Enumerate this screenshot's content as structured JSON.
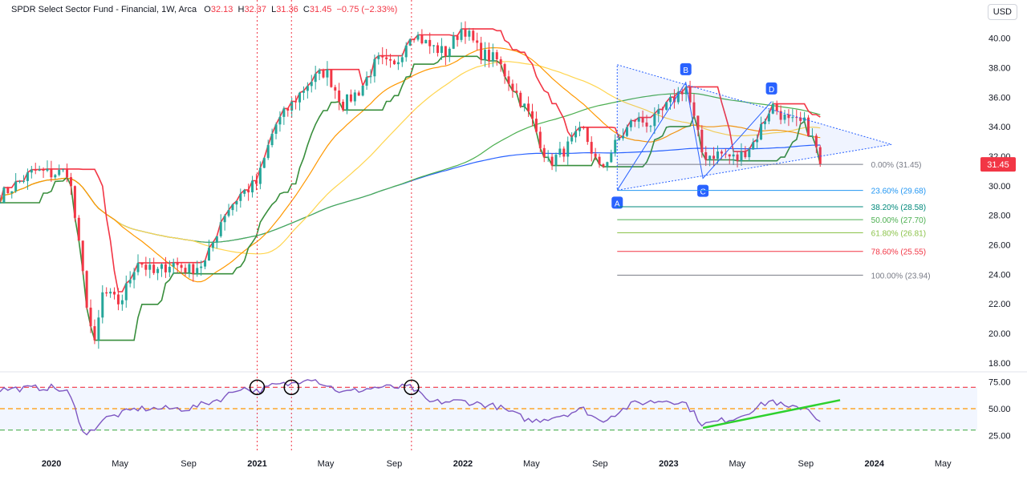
{
  "header": {
    "symbol": "SPDR Select Sector Fund - Financial, 1W, Arca",
    "o_label": "O",
    "o": "32.13",
    "h_label": "H",
    "h": "32.37",
    "l_label": "L",
    "l": "31.36",
    "c_label": "C",
    "c": "31.45",
    "change": "−0.75 (−2.33%)"
  },
  "currency_button": "USD",
  "last_price_label": "31.45",
  "colors": {
    "up": "#26a69a",
    "down": "#f23645",
    "rsi": "#7e57c2",
    "sma200": "#2962ff",
    "fib_blue": "#2196f3",
    "triangle": "#2962ff"
  },
  "chart_data": {
    "type": "candlestick",
    "title": "SPDR Select Sector Fund - Financial, 1W, Arca",
    "x_axis": {
      "tick_labels": [
        "2020",
        "May",
        "Sep",
        "2021",
        "May",
        "Sep",
        "2022",
        "May",
        "Sep",
        "2023",
        "May",
        "Sep",
        "2024",
        "May"
      ],
      "range": [
        "2019-10",
        "2024-07"
      ]
    },
    "y_axis": {
      "range": [
        17.5,
        41.5
      ],
      "tick_labels": [
        "18.00",
        "20.00",
        "22.00",
        "24.00",
        "26.00",
        "28.00",
        "30.00",
        "32.00",
        "34.00",
        "36.00",
        "38.00",
        "40.00"
      ]
    },
    "price_anchors": [
      {
        "t": "2019-10",
        "v": 29.3
      },
      {
        "t": "2019-12",
        "v": 31.0
      },
      {
        "t": "2020-01",
        "v": 30.8
      },
      {
        "t": "2020-02",
        "v": 31.0
      },
      {
        "t": "2020-03",
        "v": 22.5
      },
      {
        "t": "2020-03b",
        "v": 19.0
      },
      {
        "t": "2020-04",
        "v": 22.8
      },
      {
        "t": "2020-05",
        "v": 22.0
      },
      {
        "t": "2020-06",
        "v": 25.0
      },
      {
        "t": "2020-07",
        "v": 24.0
      },
      {
        "t": "2020-08",
        "v": 24.8
      },
      {
        "t": "2020-09",
        "v": 24.3
      },
      {
        "t": "2020-10",
        "v": 24.8
      },
      {
        "t": "2020-11",
        "v": 28.0
      },
      {
        "t": "2020-12",
        "v": 29.4
      },
      {
        "t": "2021-01",
        "v": 30.2
      },
      {
        "t": "2021-02",
        "v": 34.0
      },
      {
        "t": "2021-03",
        "v": 35.5
      },
      {
        "t": "2021-04",
        "v": 37.0
      },
      {
        "t": "2021-05",
        "v": 37.8
      },
      {
        "t": "2021-06",
        "v": 35.5
      },
      {
        "t": "2021-07",
        "v": 36.5
      },
      {
        "t": "2021-08",
        "v": 38.5
      },
      {
        "t": "2021-09",
        "v": 38.0
      },
      {
        "t": "2021-10",
        "v": 40.5
      },
      {
        "t": "2021-11",
        "v": 39.5
      },
      {
        "t": "2021-12",
        "v": 39.0
      },
      {
        "t": "2022-01",
        "v": 40.8
      },
      {
        "t": "2022-02",
        "v": 39.0
      },
      {
        "t": "2022-03",
        "v": 38.5
      },
      {
        "t": "2022-04",
        "v": 36.5
      },
      {
        "t": "2022-05",
        "v": 34.5
      },
      {
        "t": "2022-06",
        "v": 31.5
      },
      {
        "t": "2022-07",
        "v": 32.5
      },
      {
        "t": "2022-08",
        "v": 33.8
      },
      {
        "t": "2022-09",
        "v": 31.0
      },
      {
        "t": "2022-10",
        "v": 33.0
      },
      {
        "t": "2022-11",
        "v": 34.5
      },
      {
        "t": "2022-12",
        "v": 34.2
      },
      {
        "t": "2023-01",
        "v": 35.5
      },
      {
        "t": "2023-02",
        "v": 36.8
      },
      {
        "t": "2023-03",
        "v": 32.0
      },
      {
        "t": "2023-04",
        "v": 32.2
      },
      {
        "t": "2023-05",
        "v": 31.8
      },
      {
        "t": "2023-06",
        "v": 33.0
      },
      {
        "t": "2023-07",
        "v": 35.5
      },
      {
        "t": "2023-08",
        "v": 34.3
      },
      {
        "t": "2023-09",
        "v": 34.2
      },
      {
        "t": "2023-10",
        "v": 31.45
      }
    ],
    "rsi": {
      "levels": [
        70,
        50,
        30
      ],
      "tick_labels": [
        "75.00",
        "50.00",
        "25.00"
      ],
      "range": [
        20,
        80
      ],
      "anchors": [
        {
          "t": "2019-10",
          "v": 68
        },
        {
          "t": "2020-01",
          "v": 70
        },
        {
          "t": "2020-02",
          "v": 65
        },
        {
          "t": "2020-03",
          "v": 24
        },
        {
          "t": "2020-04",
          "v": 40
        },
        {
          "t": "2020-06",
          "v": 50
        },
        {
          "t": "2020-09",
          "v": 50
        },
        {
          "t": "2020-11",
          "v": 60
        },
        {
          "t": "2020-12",
          "v": 70
        },
        {
          "t": "2021-01",
          "v": 66
        },
        {
          "t": "2021-02",
          "v": 72
        },
        {
          "t": "2021-03",
          "v": 73
        },
        {
          "t": "2021-04",
          "v": 80
        },
        {
          "t": "2021-06",
          "v": 65
        },
        {
          "t": "2021-08",
          "v": 70
        },
        {
          "t": "2021-10",
          "v": 70
        },
        {
          "t": "2021-11",
          "v": 56
        },
        {
          "t": "2022-01",
          "v": 57
        },
        {
          "t": "2022-03",
          "v": 52
        },
        {
          "t": "2022-05",
          "v": 38
        },
        {
          "t": "2022-07",
          "v": 45
        },
        {
          "t": "2022-08",
          "v": 50
        },
        {
          "t": "2022-09",
          "v": 38
        },
        {
          "t": "2022-11",
          "v": 55
        },
        {
          "t": "2023-01",
          "v": 58
        },
        {
          "t": "2023-02",
          "v": 55
        },
        {
          "t": "2023-03",
          "v": 35
        },
        {
          "t": "2023-05",
          "v": 42
        },
        {
          "t": "2023-07",
          "v": 58
        },
        {
          "t": "2023-08",
          "v": 50
        },
        {
          "t": "2023-09",
          "v": 52
        },
        {
          "t": "2023-10",
          "v": 36
        }
      ]
    },
    "fibonacci": [
      {
        "label": "0.00% (31.45)",
        "value": 31.45,
        "color": "#787b86"
      },
      {
        "label": "23.60% (29.68)",
        "value": 29.68,
        "color": "#2196f3"
      },
      {
        "label": "38.20% (28.58)",
        "value": 28.58,
        "color": "#00897b"
      },
      {
        "label": "50.00% (27.70)",
        "value": 27.7,
        "color": "#4caf50"
      },
      {
        "label": "61.80% (26.81)",
        "value": 26.81,
        "color": "#8bc34a"
      },
      {
        "label": "78.60% (25.55)",
        "value": 25.55,
        "color": "#f23645"
      },
      {
        "label": "100.00% (23.94)",
        "value": 23.94,
        "color": "#787b86"
      }
    ],
    "abcd_points": [
      {
        "label": "A",
        "t": "2022-10",
        "v": 29.7
      },
      {
        "label": "B",
        "t": "2023-02",
        "v": 37.0
      },
      {
        "label": "C",
        "t": "2023-03",
        "v": 30.5
      },
      {
        "label": "D",
        "t": "2023-07",
        "v": 35.7
      }
    ],
    "triangle": {
      "top": {
        "t": "2022-10",
        "v": 38.2
      },
      "bottom": {
        "t": "2022-10",
        "v": 29.7
      },
      "apex": {
        "t": "2024-02",
        "v": 32.8
      }
    },
    "vertical_markers": [
      "2021-01",
      "2021-03",
      "2021-10"
    ],
    "rsi_circles": [
      "2021-01",
      "2021-03",
      "2021-10"
    ],
    "rsi_trendline": {
      "from": {
        "t": "2023-03",
        "v": 32
      },
      "to": {
        "t": "2023-11",
        "v": 58
      }
    }
  }
}
